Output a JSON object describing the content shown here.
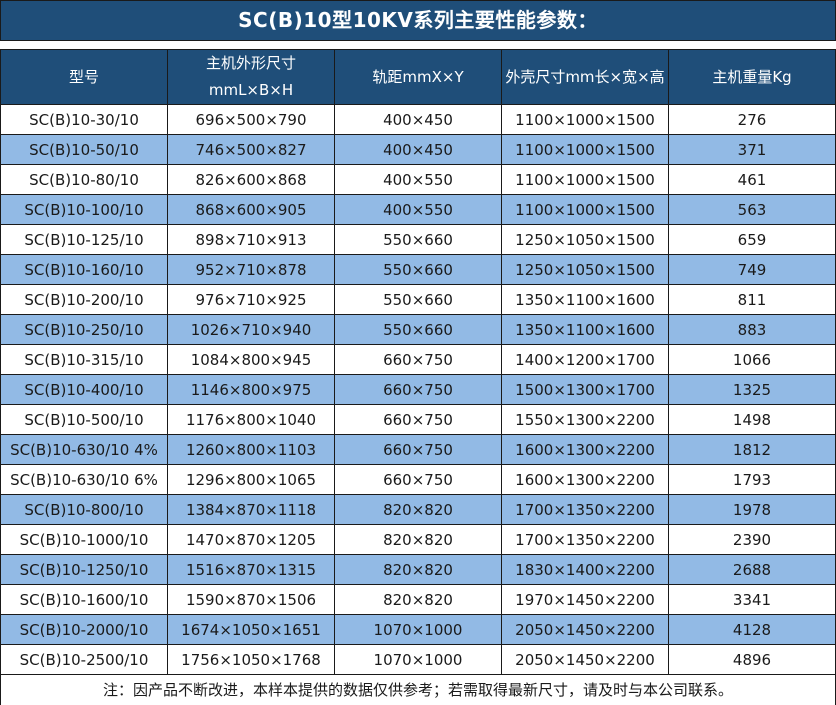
{
  "title": "SC(B)10型10KV系列主要性能参数：",
  "colors": {
    "header_bg": "#1F4E79",
    "alt_row_bg": "#92BAE5",
    "border": "#1A1A1A",
    "header_text": "#FFFFFF",
    "body_text": "#1A1A1A"
  },
  "table": {
    "columns": [
      "型号",
      "主机外形尺寸\nmmL×B×H",
      "轨距mmX×Y",
      "外壳尺寸mm长×宽×高",
      "主机重量Kg"
    ],
    "rows": [
      [
        "SC(B)10-30/10",
        "696×500×790",
        "400×450",
        "1100×1000×1500",
        "276"
      ],
      [
        "SC(B)10-50/10",
        "746×500×827",
        "400×450",
        "1100×1000×1500",
        "371"
      ],
      [
        "SC(B)10-80/10",
        "826×600×868",
        "400×550",
        "1100×1000×1500",
        "461"
      ],
      [
        "SC(B)10-100/10",
        "868×600×905",
        "400×550",
        "1100×1000×1500",
        "563"
      ],
      [
        "SC(B)10-125/10",
        "898×710×913",
        "550×660",
        "1250×1050×1500",
        "659"
      ],
      [
        "SC(B)10-160/10",
        "952×710×878",
        "550×660",
        "1250×1050×1500",
        "749"
      ],
      [
        "SC(B)10-200/10",
        "976×710×925",
        "550×660",
        "1350×1100×1600",
        "811"
      ],
      [
        "SC(B)10-250/10",
        "1026×710×940",
        "550×660",
        "1350×1100×1600",
        "883"
      ],
      [
        "SC(B)10-315/10",
        "1084×800×945",
        "660×750",
        "1400×1200×1700",
        "1066"
      ],
      [
        "SC(B)10-400/10",
        "1146×800×975",
        "660×750",
        "1500×1300×1700",
        "1325"
      ],
      [
        "SC(B)10-500/10",
        "1176×800×1040",
        "660×750",
        "1550×1300×2200",
        "1498"
      ],
      [
        "SC(B)10-630/10 4%",
        "1260×800×1103",
        "660×750",
        "1600×1300×2200",
        "1812"
      ],
      [
        "SC(B)10-630/10 6%",
        "1296×800×1065",
        "660×750",
        "1600×1300×2200",
        "1793"
      ],
      [
        "SC(B)10-800/10",
        "1384×870×1118",
        "820×820",
        "1700×1350×2200",
        "1978"
      ],
      [
        "SC(B)10-1000/10",
        "1470×870×1205",
        "820×820",
        "1700×1350×2200",
        "2390"
      ],
      [
        "SC(B)10-1250/10",
        "1516×870×1315",
        "820×820",
        "1830×1400×2200",
        "2688"
      ],
      [
        "SC(B)10-1600/10",
        "1590×870×1506",
        "820×820",
        "1970×1450×2200",
        "3341"
      ],
      [
        "SC(B)10-2000/10",
        "1674×1050×1651",
        "1070×1000",
        "2050×1450×2200",
        "4128"
      ],
      [
        "SC(B)10-2500/10",
        "1756×1050×1768",
        "1070×1000",
        "2050×1450×2200",
        "4896"
      ]
    ]
  },
  "footnote": "注：因产品不断改进，本样本提供的数据仅供参考；若需取得最新尺寸，请及时与本公司联系。"
}
